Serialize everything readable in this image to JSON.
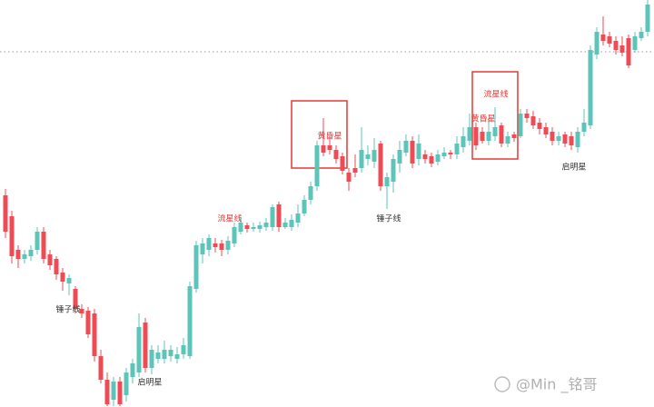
{
  "chart_data": {
    "type": "candlestick",
    "ylim": [
      0,
      448
    ],
    "up_color": "#5cc4b8",
    "down_color": "#ef4b55",
    "hline": 391,
    "open": [
      233,
      210,
      173,
      163,
      166,
      173,
      193,
      168,
      163,
      148,
      136,
      130,
      108,
      106,
      103,
      56,
      30,
      8,
      28,
      13,
      33,
      38,
      93,
      43,
      53,
      53,
      56,
      53,
      58,
      56,
      130,
      168,
      173,
      180,
      180,
      173,
      180,
      193,
      200,
      196,
      196,
      198,
      198,
      223,
      198,
      198,
      203,
      213,
      228,
      243,
      288,
      288,
      283,
      276,
      258,
      263,
      263,
      273,
      270,
      290,
      243,
      248,
      268,
      280,
      293,
      273,
      278,
      276,
      270,
      276,
      280,
      278,
      286,
      293,
      308,
      303,
      293,
      298,
      310,
      290,
      300,
      298,
      323,
      320,
      313,
      308,
      303,
      293,
      300,
      298,
      286,
      303,
      310,
      388,
      410,
      408,
      403,
      398,
      406,
      393,
      406,
      413
    ],
    "close": [
      193,
      166,
      163,
      168,
      173,
      193,
      163,
      156,
      146,
      138,
      142,
      108,
      103,
      80,
      56,
      30,
      3,
      28,
      3,
      38,
      48,
      88,
      43,
      63,
      60,
      63,
      63,
      58,
      68,
      133,
      178,
      180,
      186,
      176,
      173,
      183,
      198,
      203,
      196,
      198,
      200,
      203,
      220,
      198,
      203,
      206,
      213,
      228,
      243,
      288,
      280,
      283,
      273,
      260,
      248,
      258,
      283,
      278,
      283,
      243,
      253,
      273,
      283,
      293,
      268,
      290,
      273,
      268,
      278,
      280,
      278,
      290,
      298,
      308,
      288,
      293,
      303,
      308,
      290,
      298,
      296,
      323,
      318,
      310,
      306,
      300,
      293,
      298,
      290,
      288,
      303,
      313,
      393,
      413,
      403,
      400,
      393,
      390,
      376,
      408,
      413,
      443
    ],
    "high": [
      240,
      216,
      178,
      173,
      178,
      198,
      198,
      173,
      166,
      153,
      146,
      133,
      113,
      110,
      108,
      63,
      38,
      33,
      33,
      43,
      53,
      103,
      98,
      68,
      68,
      73,
      68,
      66,
      76,
      138,
      183,
      186,
      190,
      186,
      184,
      188,
      203,
      208,
      203,
      203,
      204,
      208,
      223,
      226,
      208,
      212,
      223,
      233,
      248,
      293,
      318,
      298,
      288,
      280,
      263,
      278,
      308,
      288,
      296,
      293,
      258,
      278,
      293,
      300,
      298,
      300,
      283,
      280,
      283,
      286,
      283,
      298,
      308,
      323,
      313,
      308,
      318,
      330,
      313,
      303,
      303,
      328,
      328,
      326,
      318,
      313,
      308,
      303,
      303,
      303,
      308,
      328,
      398,
      418,
      430,
      413,
      408,
      408,
      410,
      413,
      418,
      448
    ],
    "low": [
      186,
      158,
      153,
      158,
      161,
      168,
      158,
      151,
      140,
      128,
      123,
      103,
      98,
      76,
      50,
      26,
      1,
      1,
      1,
      6,
      26,
      33,
      38,
      36,
      48,
      48,
      50,
      48,
      53,
      53,
      126,
      158,
      166,
      170,
      166,
      168,
      176,
      190,
      192,
      193,
      192,
      194,
      194,
      193,
      196,
      194,
      198,
      210,
      223,
      238,
      276,
      278,
      268,
      256,
      238,
      253,
      258,
      266,
      263,
      238,
      218,
      236,
      258,
      276,
      263,
      266,
      268,
      264,
      266,
      273,
      273,
      273,
      280,
      288,
      283,
      290,
      288,
      293,
      286,
      286,
      292,
      296,
      313,
      306,
      300,
      296,
      288,
      288,
      286,
      283,
      280,
      298,
      306,
      383,
      398,
      396,
      388,
      386,
      373,
      390,
      403,
      408
    ],
    "annotations": [
      "锤子线",
      "启明星",
      "流星线",
      "黄昏星",
      "锤子线",
      "流星线",
      "黄昏星",
      "启明星"
    ],
    "watermark": "@Min _铭哥"
  }
}
